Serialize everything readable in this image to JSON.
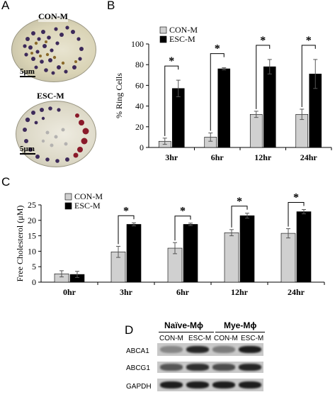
{
  "panels": {
    "a": {
      "letter": "A",
      "cells": [
        {
          "label": "CON-M",
          "scale": "5μm"
        },
        {
          "label": "ESC-M",
          "scale": "5μm"
        }
      ]
    },
    "b": {
      "letter": "B"
    },
    "c": {
      "letter": "C"
    },
    "d": {
      "letter": "D"
    }
  },
  "chart_data": [
    {
      "type": "bar",
      "categories": [
        "3hr",
        "6hr",
        "12hr",
        "24hr"
      ],
      "series": [
        {
          "name": "CON-M",
          "values": [
            6,
            10,
            32,
            32
          ],
          "errors": [
            3,
            4,
            3,
            5
          ],
          "color": "#d0d0d0"
        },
        {
          "name": "ESC-M",
          "values": [
            57,
            76,
            78,
            71
          ],
          "errors": [
            8,
            1,
            7,
            14
          ],
          "color": "#000000"
        }
      ],
      "significance": [
        "*",
        "*",
        "*",
        "*"
      ],
      "ylabel": "% Ring Cells",
      "ylim": [
        0,
        100
      ],
      "yticks": [
        0,
        20,
        40,
        60,
        80,
        100
      ],
      "legend": "top-left"
    },
    {
      "type": "bar",
      "categories": [
        "0hr",
        "3hr",
        "6hr",
        "12hr",
        "24hr"
      ],
      "series": [
        {
          "name": "CON-M",
          "values": [
            2.7,
            9.8,
            11,
            16,
            15.8
          ],
          "errors": [
            1,
            1.8,
            1.8,
            1,
            1.5
          ],
          "color": "#d0d0d0"
        },
        {
          "name": "ESC-M",
          "values": [
            2.5,
            18.7,
            18.7,
            21.5,
            22.8
          ],
          "errors": [
            1,
            0.5,
            0.4,
            0.8,
            0.7
          ],
          "color": "#000000"
        }
      ],
      "significance": [
        "",
        "*",
        "*",
        "*",
        "*"
      ],
      "ylabel": "Free Cholesterol (μM)",
      "ylim": [
        0,
        25
      ],
      "yticks": [
        0,
        5,
        10,
        15,
        20,
        25
      ],
      "legend": "top-left"
    }
  ],
  "blot": {
    "groups": [
      "Naïve-Mϕ",
      "Mye-Mϕ"
    ],
    "lanes": [
      "CON-M",
      "ESC-M",
      "CON-M",
      "ESC-M"
    ],
    "rows": [
      {
        "label": "ABCA1",
        "intensity": [
          0.35,
          0.85,
          0.4,
          0.9
        ]
      },
      {
        "label": "ABCG1",
        "intensity": [
          0.6,
          0.8,
          0.65,
          0.85
        ]
      },
      {
        "label": "GAPDH",
        "intensity": [
          0.9,
          0.9,
          0.9,
          0.9
        ]
      }
    ]
  }
}
